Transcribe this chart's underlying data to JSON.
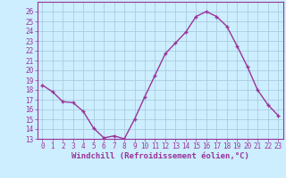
{
  "x": [
    0,
    1,
    2,
    3,
    4,
    5,
    6,
    7,
    8,
    9,
    10,
    11,
    12,
    13,
    14,
    15,
    16,
    17,
    18,
    19,
    20,
    21,
    22,
    23
  ],
  "y": [
    18.5,
    17.8,
    16.8,
    16.7,
    15.8,
    14.1,
    13.1,
    13.3,
    13.0,
    15.0,
    17.3,
    19.5,
    21.7,
    22.8,
    23.9,
    25.5,
    26.0,
    25.5,
    24.5,
    22.5,
    20.4,
    18.0,
    16.5,
    15.4
  ],
  "line_color": "#993399",
  "marker": "+",
  "marker_size": 3,
  "marker_linewidth": 1.0,
  "background_color": "#cceeff",
  "grid_color": "#aaccdd",
  "xlabel": "Windchill (Refroidissement éolien,°C)",
  "xlabel_color": "#993399",
  "tick_color": "#993399",
  "spine_color": "#993399",
  "ylim": [
    13,
    27
  ],
  "xlim": [
    -0.5,
    23.5
  ],
  "yticks": [
    13,
    14,
    15,
    16,
    17,
    18,
    19,
    20,
    21,
    22,
    23,
    24,
    25,
    26
  ],
  "xticks": [
    0,
    1,
    2,
    3,
    4,
    5,
    6,
    7,
    8,
    9,
    10,
    11,
    12,
    13,
    14,
    15,
    16,
    17,
    18,
    19,
    20,
    21,
    22,
    23
  ],
  "tick_fontsize": 5.5,
  "xlabel_fontsize": 6.5,
  "linewidth": 1.0
}
